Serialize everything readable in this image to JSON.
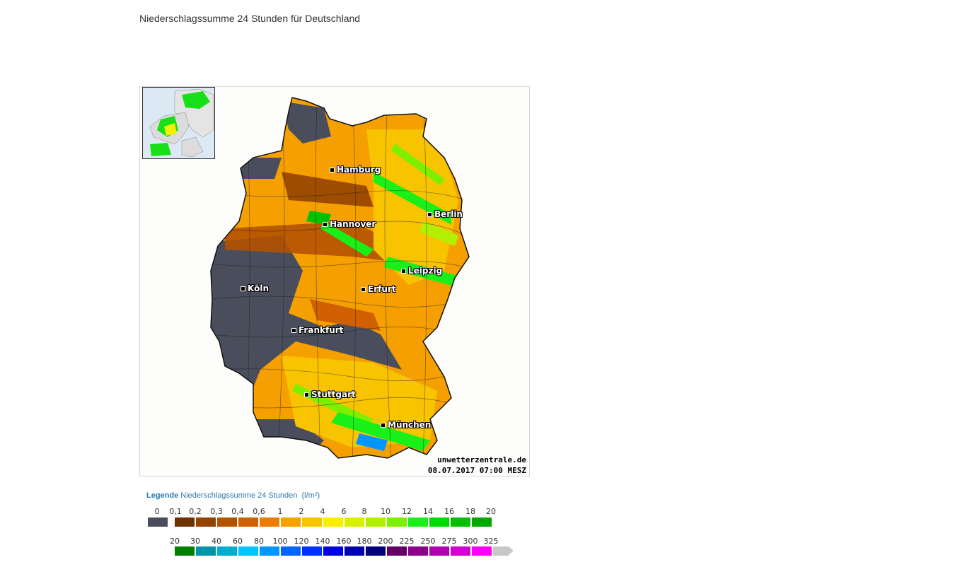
{
  "page": {
    "title": "Niederschlagssumme 24 Stunden für Deutschland"
  },
  "map": {
    "cities": [
      {
        "name": "Hamburg"
      },
      {
        "name": "Berlin"
      },
      {
        "name": "Hannover"
      },
      {
        "name": "Leipzig"
      },
      {
        "name": "Köln"
      },
      {
        "name": "Erfurt"
      },
      {
        "name": "Frankfurt"
      },
      {
        "name": "Stuttgart"
      },
      {
        "name": "München"
      }
    ],
    "credit_site": "unwetterzentrale.de",
    "credit_time": "08.07.2017 07:00 MESZ"
  },
  "legend": {
    "label": "Legende",
    "title": "Niederschlagssumme 24 Stunden",
    "unit": "(l/m²)",
    "row1": {
      "labels": [
        "0",
        "0,1",
        "0,2",
        "0,3",
        "0,4",
        "0,6",
        "1",
        "2",
        "4",
        "6",
        "8",
        "10",
        "12",
        "14",
        "16",
        "18",
        "20"
      ],
      "colors": [
        "#4a4e5c",
        "#6e3200",
        "#944200",
        "#b55200",
        "#d06000",
        "#ee7c00",
        "#f7a200",
        "#f8c400",
        "#f8f000",
        "#d7f000",
        "#b0f000",
        "#7cf000",
        "#18f018",
        "#00d800",
        "#00c000",
        "#00a800"
      ]
    },
    "row2": {
      "labels": [
        "20",
        "30",
        "40",
        "60",
        "80",
        "100",
        "120",
        "140",
        "160",
        "180",
        "200",
        "225",
        "250",
        "275",
        "300",
        "325"
      ],
      "colors": [
        "#008000",
        "#0096aa",
        "#00aed0",
        "#00c4ff",
        "#0096ff",
        "#0064ff",
        "#0032ff",
        "#0000e0",
        "#0000b0",
        "#00007e",
        "#640064",
        "#8c008c",
        "#b000b0",
        "#d200d2",
        "#ff00ff",
        "#c8c8c8"
      ]
    }
  }
}
